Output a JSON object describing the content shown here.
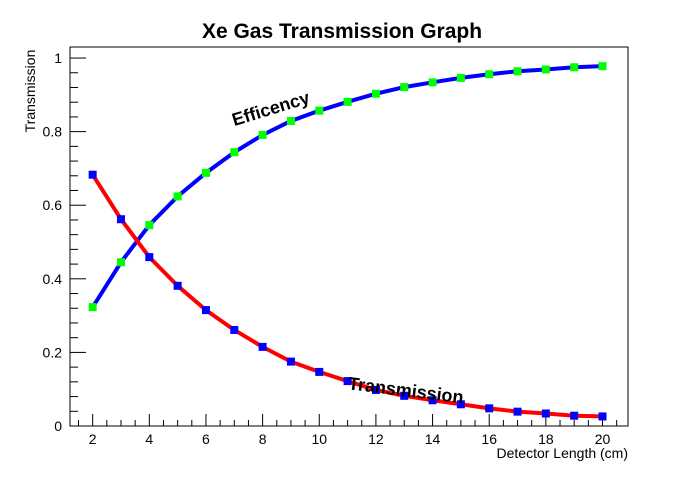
{
  "chart_data": {
    "type": "line",
    "title": "Xe Gas Transmission Graph",
    "xlabel": "Detector Length (cm)",
    "ylabel": "Transmission",
    "xlim": [
      1.2,
      20.9
    ],
    "ylim": [
      0,
      1.03
    ],
    "x_ticks": [
      2,
      4,
      6,
      8,
      10,
      12,
      14,
      16,
      18,
      20
    ],
    "y_ticks": [
      0,
      0.2,
      0.4,
      0.6,
      0.8,
      1
    ],
    "x_tick_labels": [
      "2",
      "4",
      "6",
      "8",
      "10",
      "12",
      "14",
      "16",
      "18",
      "20"
    ],
    "y_tick_labels": [
      "0",
      "0.2",
      "0.4",
      "0.6",
      "0.8",
      "1"
    ],
    "grid": false,
    "legend": "none",
    "x": [
      2,
      3,
      4,
      5,
      6,
      7,
      8,
      9,
      10,
      11,
      12,
      13,
      14,
      15,
      16,
      17,
      18,
      19,
      20
    ],
    "series": [
      {
        "name": "Efficency",
        "line_color": "#0000ff",
        "marker_color": "#00ff00",
        "values": [
          0.323,
          0.445,
          0.546,
          0.624,
          0.688,
          0.744,
          0.791,
          0.829,
          0.857,
          0.881,
          0.903,
          0.921,
          0.934,
          0.946,
          0.956,
          0.964,
          0.969,
          0.975,
          0.978
        ]
      },
      {
        "name": "Transmission",
        "line_color": "#ff0000",
        "marker_color": "#0000ff",
        "values": [
          0.683,
          0.562,
          0.459,
          0.381,
          0.315,
          0.261,
          0.215,
          0.175,
          0.147,
          0.122,
          0.098,
          0.082,
          0.07,
          0.059,
          0.048,
          0.039,
          0.034,
          0.028,
          0.026
        ]
      }
    ],
    "annotations": [
      {
        "text": "Efficency",
        "x": 7,
        "y": 0.815,
        "angle": -17
      },
      {
        "text": "Transmission",
        "x": 11,
        "y": 0.1,
        "angle": 7
      }
    ]
  }
}
